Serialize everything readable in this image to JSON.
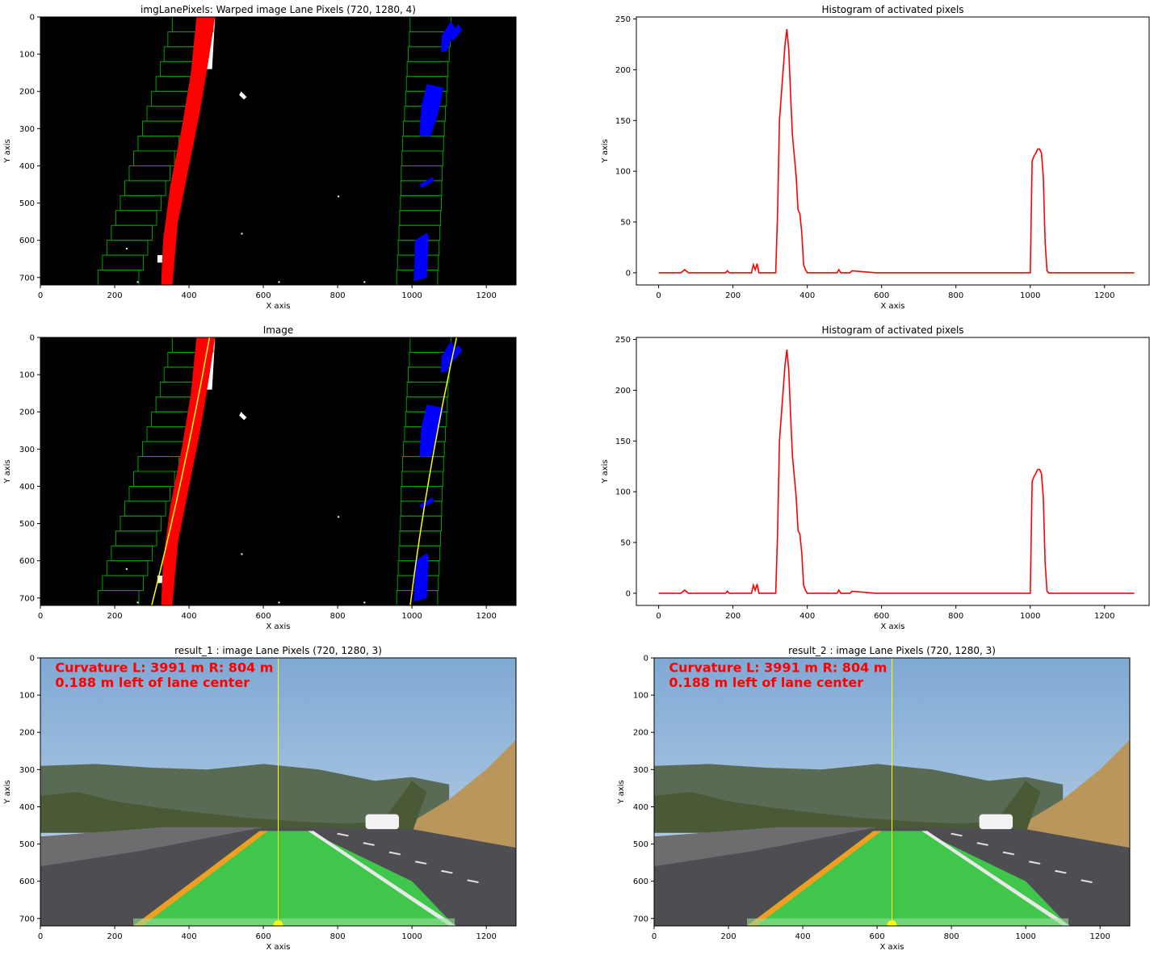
{
  "chart_data": [
    {
      "type": "image",
      "title": "imgLanePixels: Warped image Lane Pixels      (720, 1280, 4)",
      "xlabel": "X axis",
      "ylabel": "Y axis",
      "xlim": [
        0,
        1280
      ],
      "ylim": [
        720,
        0
      ],
      "xticks": [
        "0",
        "200",
        "400",
        "600",
        "800",
        "1000",
        "1200"
      ],
      "yticks": [
        "0",
        "100",
        "200",
        "300",
        "400",
        "500",
        "600",
        "700"
      ],
      "colors": {
        "left_lane": "#ff0000",
        "right_lane": "#0000ff",
        "windows": "#00a000"
      }
    },
    {
      "type": "line",
      "title": "Histogram of activated pixels",
      "xlabel": "X axis",
      "ylabel": "Y axis",
      "xlim": [
        -60,
        1320
      ],
      "ylim": [
        -12,
        252
      ],
      "xticks": [
        "0",
        "200",
        "400",
        "600",
        "800",
        "1000",
        "1200"
      ],
      "yticks": [
        "0",
        "50",
        "100",
        "150",
        "200",
        "250"
      ],
      "color": "#ff0000",
      "x": [
        0,
        60,
        70,
        80,
        180,
        185,
        190,
        250,
        255,
        260,
        265,
        270,
        315,
        320,
        325,
        330,
        335,
        340,
        345,
        350,
        355,
        360,
        365,
        370,
        375,
        380,
        385,
        390,
        395,
        400,
        480,
        485,
        490,
        515,
        520,
        585,
        650,
        1000,
        1005,
        1010,
        1015,
        1020,
        1025,
        1030,
        1035,
        1040,
        1045,
        1050,
        1280
      ],
      "y": [
        0,
        0,
        3,
        0,
        0,
        2,
        0,
        0,
        8,
        3,
        9,
        0,
        0,
        60,
        150,
        175,
        200,
        225,
        240,
        220,
        175,
        135,
        115,
        95,
        62,
        58,
        40,
        8,
        3,
        0,
        0,
        3,
        0,
        0,
        2,
        0,
        0,
        0,
        110,
        115,
        118,
        122,
        122,
        118,
        95,
        30,
        2,
        0,
        0
      ]
    },
    {
      "type": "image",
      "title": "Image",
      "xlabel": "X axis",
      "ylabel": "Y axis",
      "xlim": [
        0,
        1280
      ],
      "ylim": [
        720,
        0
      ],
      "xticks": [
        "0",
        "200",
        "400",
        "600",
        "800",
        "1000",
        "1200"
      ],
      "yticks": [
        "0",
        "100",
        "200",
        "300",
        "400",
        "500",
        "600",
        "700"
      ],
      "colors": {
        "left_lane": "#ff0000",
        "right_lane": "#0000ff",
        "windows": "#00a000",
        "fit": "#ffff00"
      }
    },
    {
      "type": "line",
      "title": "Histogram of activated pixels",
      "xlabel": "X axis",
      "ylabel": "Y axis",
      "xlim": [
        -60,
        1320
      ],
      "ylim": [
        -12,
        252
      ],
      "xticks": [
        "0",
        "200",
        "400",
        "600",
        "800",
        "1000",
        "1200"
      ],
      "yticks": [
        "0",
        "50",
        "100",
        "150",
        "200",
        "250"
      ],
      "color": "#ff0000",
      "x": [
        0,
        60,
        70,
        80,
        180,
        185,
        190,
        250,
        255,
        260,
        265,
        270,
        315,
        320,
        325,
        330,
        335,
        340,
        345,
        350,
        355,
        360,
        365,
        370,
        375,
        380,
        385,
        390,
        395,
        400,
        480,
        485,
        490,
        515,
        520,
        585,
        650,
        1000,
        1005,
        1010,
        1015,
        1020,
        1025,
        1030,
        1035,
        1040,
        1045,
        1050,
        1280
      ],
      "y": [
        0,
        0,
        3,
        0,
        0,
        2,
        0,
        0,
        8,
        3,
        9,
        0,
        0,
        60,
        150,
        175,
        200,
        225,
        240,
        220,
        175,
        135,
        115,
        95,
        62,
        58,
        40,
        8,
        3,
        0,
        0,
        3,
        0,
        0,
        2,
        0,
        0,
        0,
        110,
        115,
        118,
        122,
        122,
        118,
        95,
        30,
        2,
        0,
        0
      ]
    },
    {
      "type": "image",
      "title": "result_1 : image Lane Pixels      (720, 1280, 3)",
      "xlabel": "X axis",
      "ylabel": "Y axis",
      "xlim": [
        0,
        1280
      ],
      "ylim": [
        720,
        0
      ],
      "xticks": [
        "0",
        "200",
        "400",
        "600",
        "800",
        "1000",
        "1200"
      ],
      "yticks": [
        "0",
        "100",
        "200",
        "300",
        "400",
        "500",
        "600",
        "700"
      ],
      "overlay_text": [
        "Curvature  L: 3991 m  R: 804 m",
        "0.188 m left of lane center"
      ],
      "colors": {
        "lane_fill": "#3ddc4a",
        "overlay_text": "#ff0000",
        "center_line": "#ffff00"
      }
    },
    {
      "type": "image",
      "title": "result_2 : image Lane Pixels      (720, 1280, 3)",
      "xlabel": "X axis",
      "ylabel": "Y axis",
      "xlim": [
        0,
        1280
      ],
      "ylim": [
        720,
        0
      ],
      "xticks": [
        "0",
        "200",
        "400",
        "600",
        "800",
        "1000",
        "1200"
      ],
      "yticks": [
        "0",
        "100",
        "200",
        "300",
        "400",
        "500",
        "600",
        "700"
      ],
      "overlay_text": [
        "Curvature  L: 3991 m  R: 804 m",
        "0.188 m left of lane center"
      ],
      "colors": {
        "lane_fill": "#3ddc4a",
        "overlay_text": "#ff0000",
        "center_line": "#ffff00"
      }
    }
  ]
}
